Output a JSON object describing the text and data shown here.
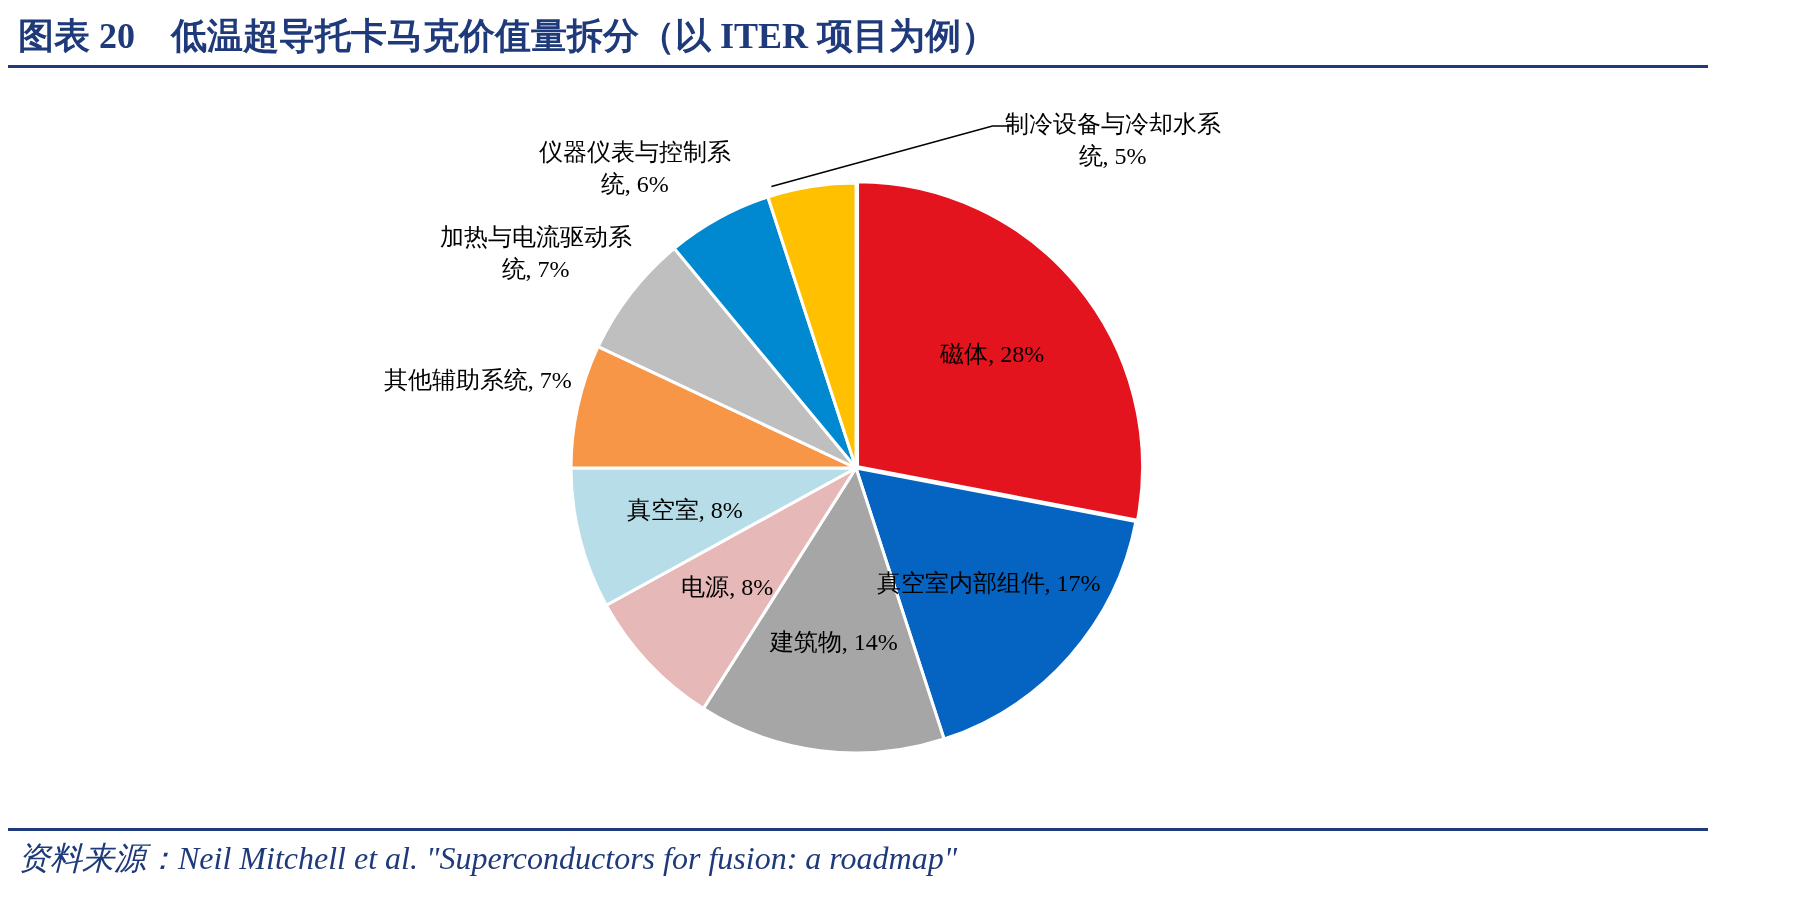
{
  "chart_data": {
    "type": "pie",
    "title": "图表 20　低温超导托卡马克价值量拆分（以 ITER 项目为例）",
    "categories": [
      "磁体",
      "真空室内部组件",
      "建筑物",
      "电源",
      "真空室",
      "其他辅助系统",
      "加热与电流驱动系统",
      "仪器仪表与控制系统",
      "制冷设备与冷却水系统"
    ],
    "values": [
      28,
      17,
      14,
      8,
      8,
      7,
      7,
      6,
      5
    ],
    "colors": [
      "#e3141e",
      "#0563c1",
      "#a6a6a6",
      "#e6b8b7",
      "#b7dee8",
      "#f79646",
      "#bfbfbf",
      "#0089d1",
      "#ffc000"
    ],
    "value_labels": [
      "28%",
      "17%",
      "14%",
      "8%",
      "8%",
      "7%",
      "7%",
      "6%",
      "5%"
    ],
    "legend": false,
    "annotations": [
      "资料来源：Neil Mitchell et al. \"Superconductors for fusion: a roadmap\""
    ]
  }
}
